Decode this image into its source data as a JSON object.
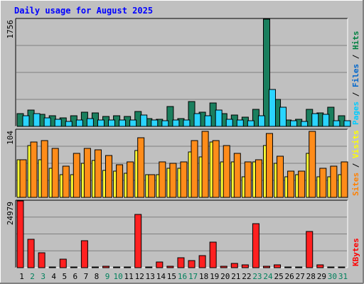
{
  "chart_data": [
    {
      "type": "bar",
      "title": "Daily usage for August 2025",
      "ymax_label": "1756",
      "ylim": [
        0,
        1756
      ],
      "grid": true,
      "legend": [
        {
          "name": "Pages",
          "color": "#00ccff"
        },
        {
          "name": "Files",
          "color": "#0066cc"
        },
        {
          "name": "Hits",
          "color": "#008040"
        }
      ],
      "categories": [
        "1",
        "2",
        "3",
        "4",
        "5",
        "6",
        "7",
        "8",
        "9",
        "10",
        "11",
        "12",
        "13",
        "14",
        "15",
        "16",
        "17",
        "18",
        "19",
        "20",
        "21",
        "22",
        "23",
        "24",
        "25",
        "26",
        "27",
        "28",
        "29",
        "30",
        "31"
      ],
      "series": [
        {
          "name": "Hits",
          "color": "#1a7f5e",
          "values": [
            210,
            270,
            200,
            180,
            140,
            180,
            230,
            220,
            160,
            170,
            160,
            250,
            130,
            120,
            320,
            130,
            410,
            230,
            380,
            210,
            190,
            150,
            280,
            1756,
            440,
            110,
            120,
            280,
            220,
            310,
            170
          ]
        },
        {
          "name": "Files",
          "color": "#66a8ff",
          "values": [
            0,
            0,
            0,
            0,
            0,
            0,
            0,
            0,
            0,
            0,
            0,
            0,
            0,
            0,
            0,
            0,
            0,
            0,
            0,
            0,
            0,
            0,
            0,
            0,
            0,
            0,
            0,
            0,
            0,
            0,
            0
          ]
        },
        {
          "name": "Pages",
          "color": "#2ad4ff",
          "values": [
            170,
            210,
            140,
            120,
            80,
            100,
            130,
            110,
            110,
            100,
            100,
            190,
            100,
            90,
            110,
            100,
            210,
            170,
            270,
            120,
            110,
            90,
            180,
            610,
            310,
            90,
            80,
            210,
            200,
            90,
            90
          ]
        }
      ]
    },
    {
      "type": "bar",
      "ymax_label": "104",
      "ylim": [
        0,
        104
      ],
      "grid": true,
      "legend": [
        {
          "name": "Sites",
          "color": "#ff8000"
        },
        {
          "name": "Visits",
          "color": "#ffff00"
        }
      ],
      "categories": [
        "1",
        "2",
        "3",
        "4",
        "5",
        "6",
        "7",
        "8",
        "9",
        "10",
        "11",
        "12",
        "13",
        "14",
        "15",
        "16",
        "17",
        "18",
        "19",
        "20",
        "21",
        "22",
        "23",
        "24",
        "25",
        "26",
        "27",
        "28",
        "29",
        "30",
        "31"
      ],
      "series": [
        {
          "name": "Visits",
          "color": "#ffff33",
          "values": [
            58,
            80,
            58,
            45,
            35,
            35,
            52,
            57,
            42,
            40,
            37,
            72,
            35,
            35,
            45,
            45,
            70,
            62,
            85,
            55,
            55,
            32,
            55,
            80,
            52,
            32,
            35,
            68,
            32,
            32,
            35
          ]
        },
        {
          "name": "Sites",
          "color": "#ff8c1a",
          "values": [
            58,
            85,
            88,
            75,
            48,
            68,
            75,
            73,
            65,
            50,
            55,
            92,
            35,
            55,
            52,
            55,
            88,
            102,
            88,
            80,
            68,
            55,
            58,
            98,
            63,
            40,
            40,
            102,
            45,
            48,
            55
          ]
        }
      ]
    },
    {
      "type": "bar",
      "ymax_label": "24979",
      "ylim": [
        0,
        24979
      ],
      "grid": true,
      "legend": [
        {
          "name": "KBytes",
          "color": "#ff0000"
        }
      ],
      "categories": [
        "1",
        "2",
        "3",
        "4",
        "5",
        "6",
        "7",
        "8",
        "9",
        "10",
        "11",
        "12",
        "13",
        "14",
        "15",
        "16",
        "17",
        "18",
        "19",
        "20",
        "21",
        "22",
        "23",
        "24",
        "25",
        "26",
        "27",
        "28",
        "29",
        "30",
        "31"
      ],
      "series": [
        {
          "name": "KBytes",
          "color": "#ff2020",
          "values": [
            24979,
            10500,
            5500,
            350,
            3300,
            150,
            10100,
            300,
            400,
            200,
            200,
            20000,
            200,
            2200,
            400,
            3800,
            2700,
            4600,
            9600,
            650,
            1600,
            1100,
            16600,
            500,
            950,
            350,
            300,
            13600,
            950,
            200,
            200
          ]
        }
      ]
    }
  ],
  "x_axis": {
    "labels": [
      "1",
      "2",
      "3",
      "4",
      "5",
      "6",
      "7",
      "8",
      "9",
      "10",
      "11",
      "12",
      "13",
      "14",
      "15",
      "16",
      "17",
      "18",
      "19",
      "20",
      "21",
      "22",
      "23",
      "24",
      "25",
      "26",
      "27",
      "28",
      "29",
      "30",
      "31"
    ],
    "weekend_days": [
      "2",
      "3",
      "9",
      "10",
      "16",
      "17",
      "23",
      "24",
      "30",
      "31"
    ],
    "weekday_color": "#000000",
    "weekend_color": "#00805c"
  },
  "colors": {
    "background": "#c0c0c0",
    "title": "#0000ff",
    "grid": "#808080"
  }
}
